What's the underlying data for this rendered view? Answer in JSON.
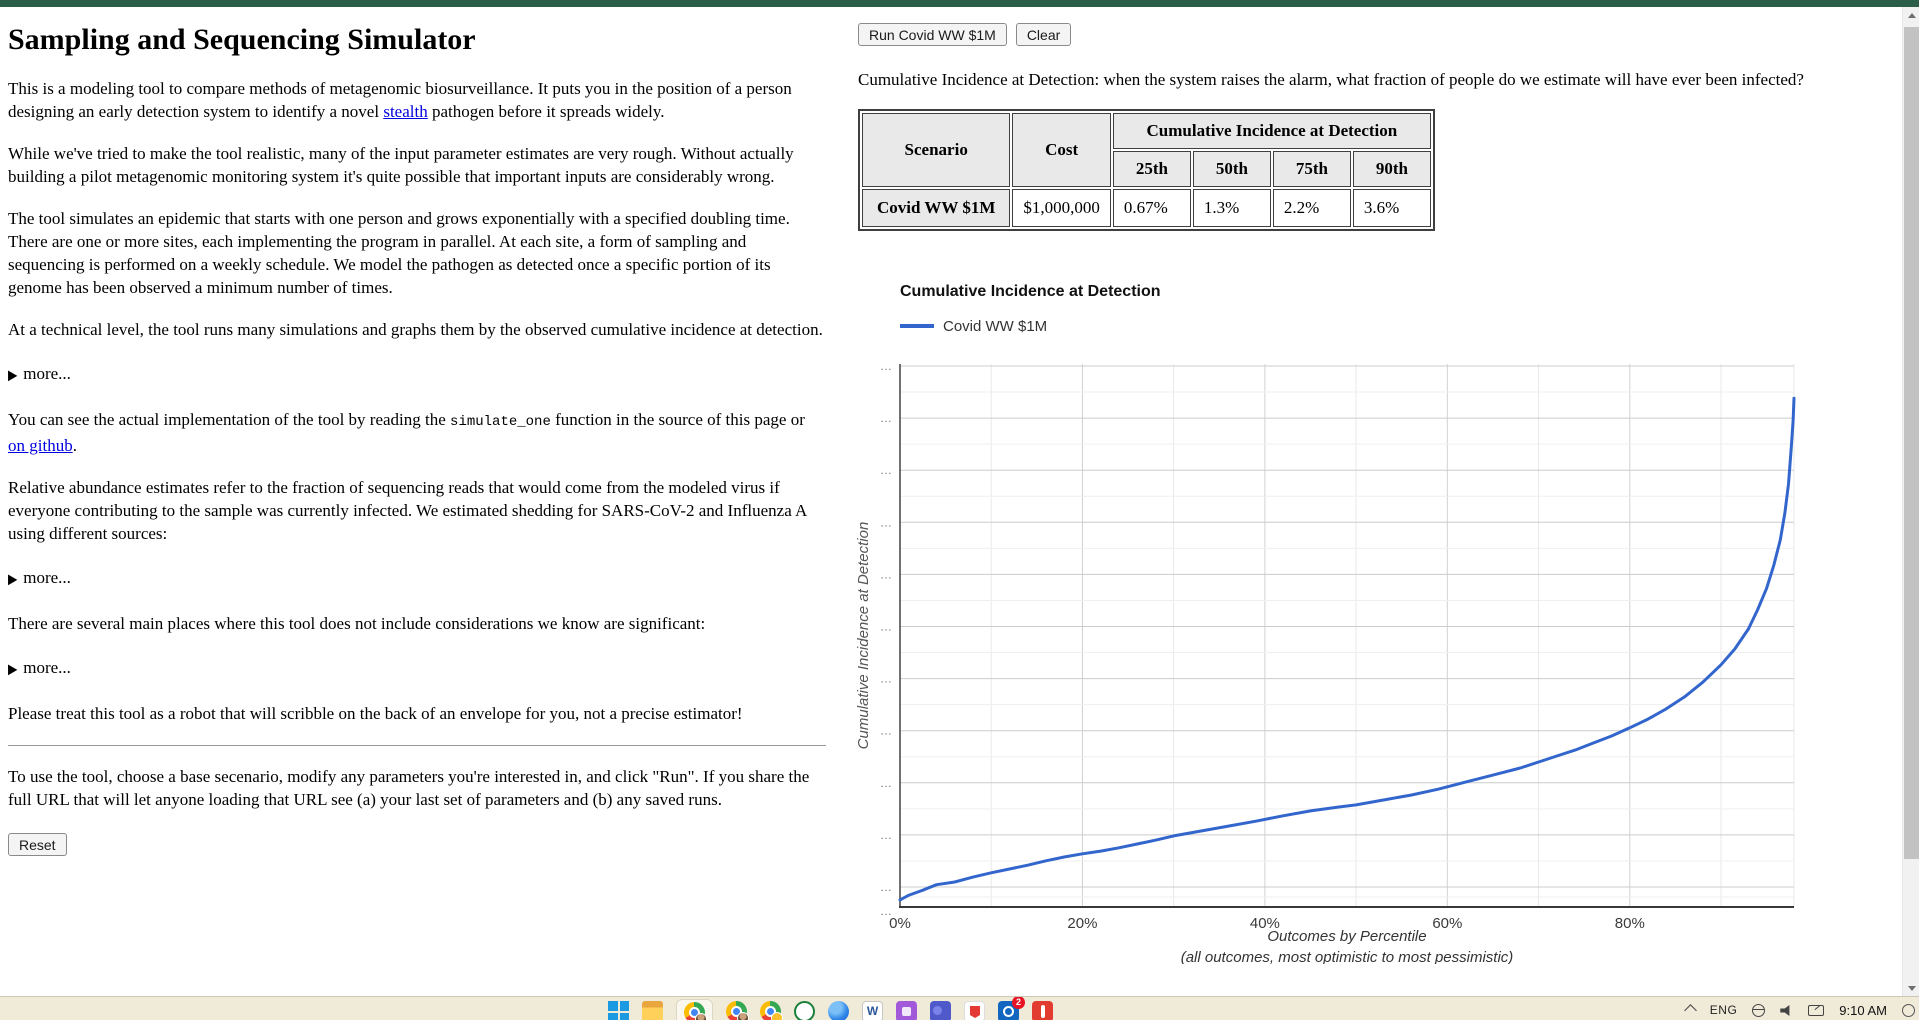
{
  "theme": {
    "header_bar_color": "#2b5e49",
    "link_color": "#0000e0",
    "chart_line_color": "#3366cc",
    "taskbar_color": "#f0ead9"
  },
  "left": {
    "heading": "Sampling and Sequencing Simulator",
    "p1_before": "This is a modeling tool to compare methods of metagenomic biosurveillance. It puts you in the position of a person designing an early detection system to identify a novel ",
    "p1_link": "stealth",
    "p1_after": " pathogen before it spreads widely.",
    "p2": "While we've tried to make the tool realistic, many of the input parameter estimates are very rough. Without actually building a pilot metagenomic monitoring system it's quite possible that important inputs are considerably wrong.",
    "p3": "The tool simulates an epidemic that starts with one person and grows exponentially with a specified doubling time. There are one or more sites, each implementing the program in parallel. At each site, a form of sampling and sequencing is performed on a weekly schedule. We model the pathogen as detected once a specific portion of its genome has been observed a minimum number of times.",
    "p4": "At a technical level, the tool runs many simulations and graphs them by the observed cumulative incidence at detection.",
    "more_label": "more...",
    "p5_before": "You can see the actual implementation of the tool by reading the ",
    "p5_code": "simulate_one",
    "p5_mid": " function in the source of this page or ",
    "p5_link": "on github",
    "p5_after": ".",
    "p6": "Relative abundance estimates refer to the fraction of sequencing reads that would come from the modeled virus if everyone contributing to the sample was currently infected. We estimated shedding for SARS-CoV-2 and Influenza A using different sources:",
    "p7": "There are several main places where this tool does not include considerations we know are significant:",
    "p8": "Please treat this tool as a robot that will scribble on the back of an envelope for you, not a precise estimator!",
    "p9": "To use the tool, choose a base secenario, modify any parameters you're interested in, and click \"Run\". If you share the full URL that will let anyone loading that URL see (a) your last set of parameters and (b) any saved runs.",
    "reset_label": "Reset"
  },
  "right": {
    "run_button": "Run Covid WW $1M",
    "clear_button": "Clear",
    "description": "Cumulative Incidence at Detection: when the system raises the alarm, what fraction of people do we estimate will have ever been infected?",
    "table": {
      "col_scenario": "Scenario",
      "col_cost": "Cost",
      "col_group": "Cumulative Incidence at Detection",
      "percentiles": [
        "25th",
        "50th",
        "75th",
        "90th"
      ],
      "rows": [
        {
          "scenario": "Covid WW $1M",
          "cost": "$1,000,000",
          "values": [
            "0.67%",
            "1.3%",
            "2.2%",
            "3.6%"
          ]
        }
      ]
    }
  },
  "chart_data": {
    "type": "line",
    "title": "Cumulative Incidence at Detection",
    "legend": [
      {
        "label": "Covid WW $1M",
        "color": "#3366cc"
      }
    ],
    "x_axis": {
      "title": "Outcomes by Percentile",
      "subtitle": "(all outcomes, most optimistic to most pessimistic)",
      "range": [
        0,
        98
      ],
      "tick_values": [
        0,
        20,
        40,
        60,
        80
      ],
      "tick_labels": [
        "0%",
        "20%",
        "40%",
        "60%",
        "80%"
      ],
      "gridline_step_pct": 10
    },
    "y_axis": {
      "title": "Cumulative Incidence at Detection",
      "scale": "log",
      "major_count": 11,
      "tick_label": "…",
      "tick_labels_truncated": true
    },
    "grid": true,
    "legend_position": "top",
    "quantiles_pct_incidence": {
      "25th": "0.67%",
      "50th": "1.3%",
      "75th": "2.2%",
      "90th": "3.6%"
    },
    "series": [
      {
        "name": "Covid WW $1M",
        "color": "#3366cc",
        "points_percentile_vs_heightfrac": [
          [
            0,
            0.013
          ],
          [
            1,
            0.022
          ],
          [
            2.5,
            0.031
          ],
          [
            4,
            0.041
          ],
          [
            6,
            0.046
          ],
          [
            8,
            0.055
          ],
          [
            10,
            0.063
          ],
          [
            12,
            0.07
          ],
          [
            14,
            0.077
          ],
          [
            16,
            0.085
          ],
          [
            18,
            0.092
          ],
          [
            20,
            0.098
          ],
          [
            22,
            0.103
          ],
          [
            24,
            0.109
          ],
          [
            26,
            0.116
          ],
          [
            28,
            0.123
          ],
          [
            30,
            0.131
          ],
          [
            33,
            0.14
          ],
          [
            36,
            0.149
          ],
          [
            39,
            0.158
          ],
          [
            42,
            0.168
          ],
          [
            45,
            0.177
          ],
          [
            48,
            0.184
          ],
          [
            50,
            0.188
          ],
          [
            53,
            0.197
          ],
          [
            56,
            0.206
          ],
          [
            59,
            0.217
          ],
          [
            62,
            0.23
          ],
          [
            65,
            0.243
          ],
          [
            68,
            0.256
          ],
          [
            70,
            0.267
          ],
          [
            72,
            0.278
          ],
          [
            74,
            0.289
          ],
          [
            76,
            0.302
          ],
          [
            78,
            0.315
          ],
          [
            80,
            0.33
          ],
          [
            82,
            0.346
          ],
          [
            84,
            0.365
          ],
          [
            86,
            0.387
          ],
          [
            88,
            0.414
          ],
          [
            90,
            0.446
          ],
          [
            91.5,
            0.475
          ],
          [
            93,
            0.512
          ],
          [
            94,
            0.547
          ],
          [
            95,
            0.587
          ],
          [
            95.8,
            0.63
          ],
          [
            96.5,
            0.676
          ],
          [
            97,
            0.726
          ],
          [
            97.4,
            0.779
          ],
          [
            97.7,
            0.847
          ],
          [
            97.9,
            0.895
          ],
          [
            98,
            0.937
          ]
        ]
      }
    ]
  },
  "taskbar": {
    "language": "ENG",
    "time": "9:10 AM",
    "mail_badge": "2",
    "icon_names": [
      "windows-start-icon",
      "file-explorer-icon",
      "chrome-profile-1-icon",
      "chrome-profile-2-icon",
      "chrome-profile-3-icon",
      "green-ring-app-icon",
      "blue-app-icon",
      "word-app-icon",
      "purple-app-icon",
      "teams-app-icon",
      "shield-app-icon",
      "outlook-app-icon",
      "red-app-icon",
      "hidden-icons-caret",
      "network-globe-icon",
      "speaker-icon",
      "pen-tablet-icon",
      "notification-ring-icon"
    ]
  }
}
